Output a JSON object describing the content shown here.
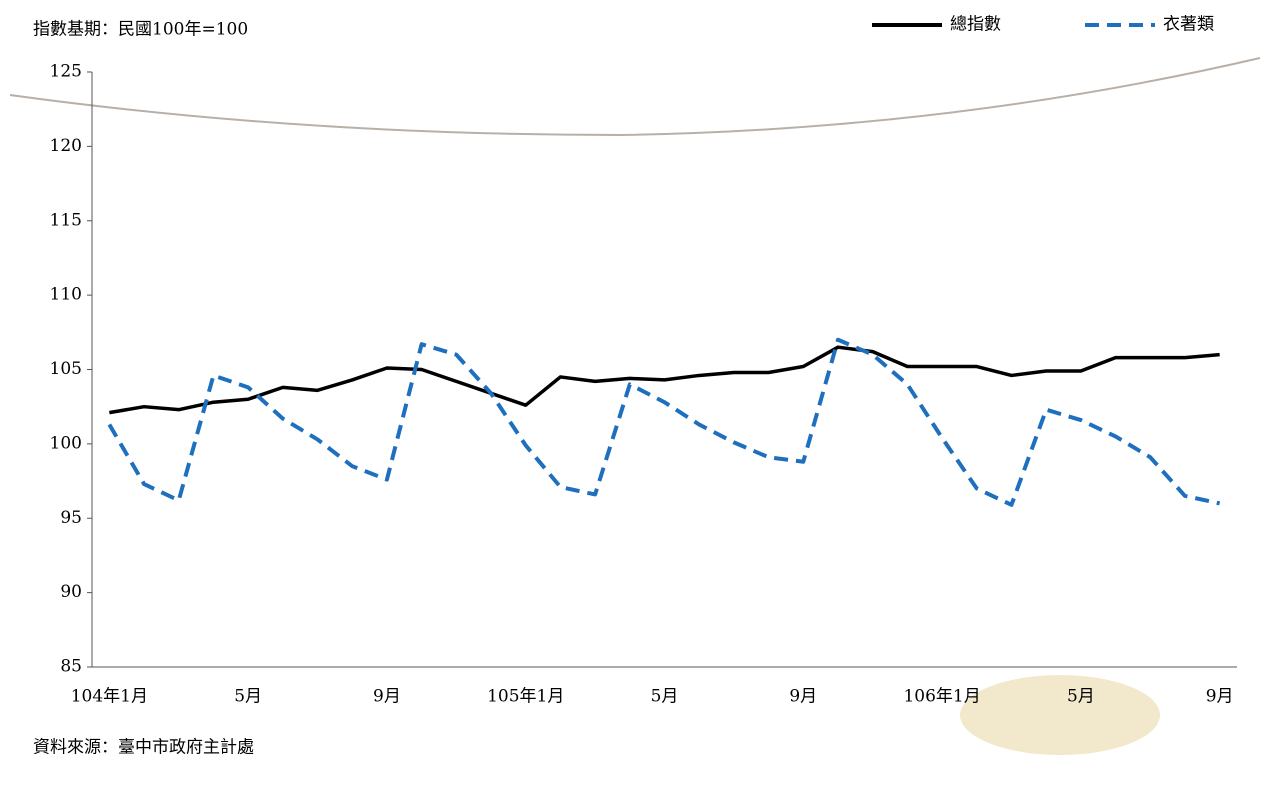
{
  "chart_data": {
    "type": "line",
    "subtitle": "指數基期：民國100年=100",
    "source": "資料來源：臺中市政府主計處",
    "categories": [
      "104年1月",
      null,
      null,
      null,
      "5月",
      null,
      null,
      null,
      "9月",
      null,
      null,
      null,
      "105年1月",
      null,
      null,
      null,
      "5月",
      null,
      null,
      null,
      "9月",
      null,
      null,
      null,
      "106年1月",
      null,
      null,
      null,
      "5月",
      null,
      null,
      null,
      "9月"
    ],
    "series": [
      {
        "name": "總指數",
        "color": "#000000",
        "dash": false,
        "values": [
          102.1,
          102.5,
          102.3,
          102.8,
          103.0,
          103.8,
          103.6,
          104.3,
          105.1,
          105.0,
          104.2,
          103.4,
          102.6,
          104.5,
          104.2,
          104.4,
          104.3,
          104.6,
          104.8,
          104.8,
          105.2,
          106.5,
          106.2,
          105.2,
          105.2,
          105.2,
          104.6,
          104.9,
          104.9,
          105.8,
          105.8,
          105.8,
          106.0
        ]
      },
      {
        "name": "衣著類",
        "color": "#1f6fbf",
        "dash": true,
        "values": [
          101.3,
          97.3,
          96.2,
          104.6,
          103.8,
          101.7,
          100.3,
          98.5,
          97.6,
          106.7,
          106.0,
          103.4,
          99.9,
          97.1,
          96.6,
          104.0,
          102.8,
          101.3,
          100.1,
          99.1,
          98.8,
          107.0,
          106.0,
          104.0,
          100.4,
          97.0,
          95.9,
          102.3,
          101.6,
          100.5,
          99.1,
          96.5,
          96.0
        ]
      }
    ],
    "ylim": [
      85,
      125
    ],
    "yticks": [
      85,
      90,
      95,
      100,
      105,
      110,
      115,
      120,
      125
    ],
    "grid": false
  }
}
